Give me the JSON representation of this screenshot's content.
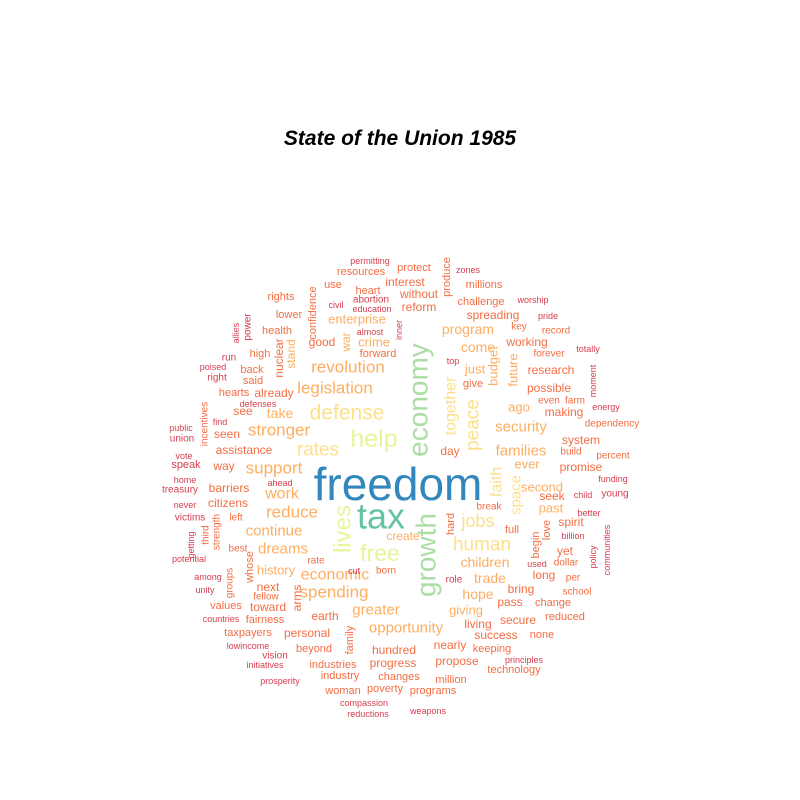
{
  "title": "State of the Union 1985",
  "palette": {
    "c0": "#d53e4f",
    "c1": "#f46d43",
    "c2": "#fdae61",
    "c3": "#fee08b",
    "c4": "#e6f598",
    "c5": "#abdda4",
    "c6": "#66c2a5",
    "c7": "#3288bd"
  },
  "words": [
    {
      "text": "freedom",
      "c": "c7"
    },
    {
      "text": "tax",
      "c": "c6"
    },
    {
      "text": "growth",
      "c": "c5"
    },
    {
      "text": "economy",
      "c": "c5"
    },
    {
      "text": "help",
      "c": "c4"
    },
    {
      "text": "lives",
      "c": "c4"
    },
    {
      "text": "free",
      "c": "c4"
    },
    {
      "text": "defense",
      "c": "c3"
    },
    {
      "text": "human",
      "c": "c3"
    },
    {
      "text": "jobs",
      "c": "c3"
    },
    {
      "text": "peace",
      "c": "c3"
    },
    {
      "text": "together",
      "c": "c3"
    },
    {
      "text": "rates",
      "c": "c3"
    },
    {
      "text": "faith",
      "c": "c3"
    },
    {
      "text": "space",
      "c": "c3"
    },
    {
      "text": "revolution",
      "c": "c2"
    },
    {
      "text": "legislation",
      "c": "c2"
    },
    {
      "text": "stronger",
      "c": "c2"
    },
    {
      "text": "support",
      "c": "c2"
    },
    {
      "text": "reduce",
      "c": "c2"
    },
    {
      "text": "work",
      "c": "c2"
    },
    {
      "text": "continue",
      "c": "c2"
    },
    {
      "text": "dreams",
      "c": "c2"
    },
    {
      "text": "economic",
      "c": "c2"
    },
    {
      "text": "spending",
      "c": "c2"
    },
    {
      "text": "greater",
      "c": "c2"
    },
    {
      "text": "opportunity",
      "c": "c2"
    },
    {
      "text": "families",
      "c": "c2"
    },
    {
      "text": "security",
      "c": "c2"
    },
    {
      "text": "children",
      "c": "c2"
    },
    {
      "text": "trade",
      "c": "c2"
    },
    {
      "text": "hope",
      "c": "c2"
    },
    {
      "text": "program",
      "c": "c2"
    },
    {
      "text": "come",
      "c": "c2"
    },
    {
      "text": "budget",
      "c": "c2"
    },
    {
      "text": "future",
      "c": "c2"
    },
    {
      "text": "enterprise",
      "c": "c2"
    },
    {
      "text": "crime",
      "c": "c2"
    },
    {
      "text": "take",
      "c": "c2"
    },
    {
      "text": "history",
      "c": "c2"
    },
    {
      "text": "second",
      "c": "c2"
    },
    {
      "text": "ever",
      "c": "c2"
    },
    {
      "text": "just",
      "c": "c2"
    },
    {
      "text": "ago",
      "c": "c2"
    },
    {
      "text": "past",
      "c": "c2"
    },
    {
      "text": "giving",
      "c": "c2"
    },
    {
      "text": "create",
      "c": "c2"
    },
    {
      "text": "war",
      "c": "c2"
    },
    {
      "text": "stand",
      "c": "c2"
    },
    {
      "text": "spreading",
      "c": "c1"
    },
    {
      "text": "working",
      "c": "c1"
    },
    {
      "text": "research",
      "c": "c1"
    },
    {
      "text": "possible",
      "c": "c1"
    },
    {
      "text": "making",
      "c": "c1"
    },
    {
      "text": "system",
      "c": "c1"
    },
    {
      "text": "promise",
      "c": "c1"
    },
    {
      "text": "seek",
      "c": "c1"
    },
    {
      "text": "spirit",
      "c": "c1"
    },
    {
      "text": "yet",
      "c": "c1"
    },
    {
      "text": "long",
      "c": "c1"
    },
    {
      "text": "bring",
      "c": "c1"
    },
    {
      "text": "pass",
      "c": "c1"
    },
    {
      "text": "secure",
      "c": "c1"
    },
    {
      "text": "living",
      "c": "c1"
    },
    {
      "text": "success",
      "c": "c1"
    },
    {
      "text": "nearly",
      "c": "c1"
    },
    {
      "text": "propose",
      "c": "c1"
    },
    {
      "text": "hundred",
      "c": "c1"
    },
    {
      "text": "progress",
      "c": "c1"
    },
    {
      "text": "personal",
      "c": "c1"
    },
    {
      "text": "earth",
      "c": "c1"
    },
    {
      "text": "family",
      "c": "c1"
    },
    {
      "text": "arms",
      "c": "c1"
    },
    {
      "text": "next",
      "c": "c1"
    },
    {
      "text": "toward",
      "c": "c1"
    },
    {
      "text": "assistance",
      "c": "c1"
    },
    {
      "text": "way",
      "c": "c1"
    },
    {
      "text": "barriers",
      "c": "c1"
    },
    {
      "text": "citizens",
      "c": "c1"
    },
    {
      "text": "seen",
      "c": "c1"
    },
    {
      "text": "see",
      "c": "c1"
    },
    {
      "text": "already",
      "c": "c1"
    },
    {
      "text": "good",
      "c": "c1"
    },
    {
      "text": "nuclear",
      "c": "c1"
    },
    {
      "text": "day",
      "c": "c1"
    },
    {
      "text": "hard",
      "c": "c1"
    },
    {
      "text": "begin",
      "c": "c1"
    },
    {
      "text": "love",
      "c": "c1"
    },
    {
      "text": "full",
      "c": "c1"
    },
    {
      "text": "without",
      "c": "c1"
    },
    {
      "text": "reform",
      "c": "c1"
    },
    {
      "text": "interest",
      "c": "c1"
    },
    {
      "text": "millions",
      "c": "c1"
    },
    {
      "text": "challenge",
      "c": "c1"
    },
    {
      "text": "resources",
      "c": "c1"
    },
    {
      "text": "protect",
      "c": "c1"
    },
    {
      "text": "produce",
      "c": "c1"
    },
    {
      "text": "heart",
      "c": "c1"
    },
    {
      "text": "use",
      "c": "c1"
    },
    {
      "text": "rights",
      "c": "c1"
    },
    {
      "text": "confidence",
      "c": "c1"
    },
    {
      "text": "health",
      "c": "c1"
    },
    {
      "text": "lower",
      "c": "c1"
    },
    {
      "text": "high",
      "c": "c1"
    },
    {
      "text": "said",
      "c": "c1"
    },
    {
      "text": "back",
      "c": "c1"
    },
    {
      "text": "forward",
      "c": "c1"
    },
    {
      "text": "hearts",
      "c": "c1"
    },
    {
      "text": "give",
      "c": "c1"
    },
    {
      "text": "change",
      "c": "c1"
    },
    {
      "text": "reduced",
      "c": "c1"
    },
    {
      "text": "none",
      "c": "c1"
    },
    {
      "text": "keeping",
      "c": "c1"
    },
    {
      "text": "technology",
      "c": "c1"
    },
    {
      "text": "million",
      "c": "c1"
    },
    {
      "text": "programs",
      "c": "c1"
    },
    {
      "text": "poverty",
      "c": "c1"
    },
    {
      "text": "changes",
      "c": "c1"
    },
    {
      "text": "woman",
      "c": "c1"
    },
    {
      "text": "industry",
      "c": "c1"
    },
    {
      "text": "industries",
      "c": "c1"
    },
    {
      "text": "beyond",
      "c": "c1"
    },
    {
      "text": "fairness",
      "c": "c1"
    },
    {
      "text": "taxpayers",
      "c": "c1"
    },
    {
      "text": "values",
      "c": "c1"
    },
    {
      "text": "fellow",
      "c": "c1"
    },
    {
      "text": "whose",
      "c": "c1"
    },
    {
      "text": "groups",
      "c": "c1"
    },
    {
      "text": "best",
      "c": "c1"
    },
    {
      "text": "left",
      "c": "c1"
    },
    {
      "text": "strength",
      "c": "c1"
    },
    {
      "text": "third",
      "c": "c1"
    },
    {
      "text": "incentives",
      "c": "c1"
    },
    {
      "text": "break",
      "c": "c1"
    },
    {
      "text": "born",
      "c": "c1"
    },
    {
      "text": "rate",
      "c": "c1"
    },
    {
      "text": "dollar",
      "c": "c1"
    },
    {
      "text": "per",
      "c": "c1"
    },
    {
      "text": "school",
      "c": "c1"
    },
    {
      "text": "build",
      "c": "c1"
    },
    {
      "text": "percent",
      "c": "c1"
    },
    {
      "text": "dependency",
      "c": "c1"
    },
    {
      "text": "forever",
      "c": "c1"
    },
    {
      "text": "key",
      "c": "c1"
    },
    {
      "text": "record",
      "c": "c1"
    },
    {
      "text": "even",
      "c": "c1"
    },
    {
      "text": "farm",
      "c": "c1"
    },
    {
      "text": "abortion",
      "c": "c0"
    },
    {
      "text": "education",
      "c": "c0"
    },
    {
      "text": "civil",
      "c": "c0"
    },
    {
      "text": "almost",
      "c": "c0"
    },
    {
      "text": "inner",
      "c": "c0"
    },
    {
      "text": "top",
      "c": "c0"
    },
    {
      "text": "cut",
      "c": "c0"
    },
    {
      "text": "ahead",
      "c": "c0"
    },
    {
      "text": "defenses",
      "c": "c0"
    },
    {
      "text": "find",
      "c": "c0"
    },
    {
      "text": "right",
      "c": "c0"
    },
    {
      "text": "poised",
      "c": "c0"
    },
    {
      "text": "run",
      "c": "c0"
    },
    {
      "text": "allies",
      "c": "c0"
    },
    {
      "text": "power",
      "c": "c0"
    },
    {
      "text": "permitting",
      "c": "c0"
    },
    {
      "text": "zones",
      "c": "c0"
    },
    {
      "text": "worship",
      "c": "c0"
    },
    {
      "text": "pride",
      "c": "c0"
    },
    {
      "text": "totally",
      "c": "c0"
    },
    {
      "text": "moment",
      "c": "c0"
    },
    {
      "text": "energy",
      "c": "c0"
    },
    {
      "text": "funding",
      "c": "c0"
    },
    {
      "text": "young",
      "c": "c0"
    },
    {
      "text": "child",
      "c": "c0"
    },
    {
      "text": "better",
      "c": "c0"
    },
    {
      "text": "billion",
      "c": "c0"
    },
    {
      "text": "policy",
      "c": "c0"
    },
    {
      "text": "communities",
      "c": "c0"
    },
    {
      "text": "used",
      "c": "c0"
    },
    {
      "text": "role",
      "c": "c0"
    },
    {
      "text": "principles",
      "c": "c0"
    },
    {
      "text": "compassion",
      "c": "c0"
    },
    {
      "text": "reductions",
      "c": "c0"
    },
    {
      "text": "weapons",
      "c": "c0"
    },
    {
      "text": "prosperity",
      "c": "c0"
    },
    {
      "text": "initiatives",
      "c": "c0"
    },
    {
      "text": "vision",
      "c": "c0"
    },
    {
      "text": "lowincome",
      "c": "c0"
    },
    {
      "text": "countries",
      "c": "c0"
    },
    {
      "text": "unity",
      "c": "c0"
    },
    {
      "text": "among",
      "c": "c0"
    },
    {
      "text": "potential",
      "c": "c0"
    },
    {
      "text": "getting",
      "c": "c0"
    },
    {
      "text": "victims",
      "c": "c0"
    },
    {
      "text": "never",
      "c": "c0"
    },
    {
      "text": "treasury",
      "c": "c0"
    },
    {
      "text": "home",
      "c": "c0"
    },
    {
      "text": "speak",
      "c": "c0"
    },
    {
      "text": "vote",
      "c": "c0"
    },
    {
      "text": "union",
      "c": "c0"
    },
    {
      "text": "public",
      "c": "c0"
    }
  ]
}
